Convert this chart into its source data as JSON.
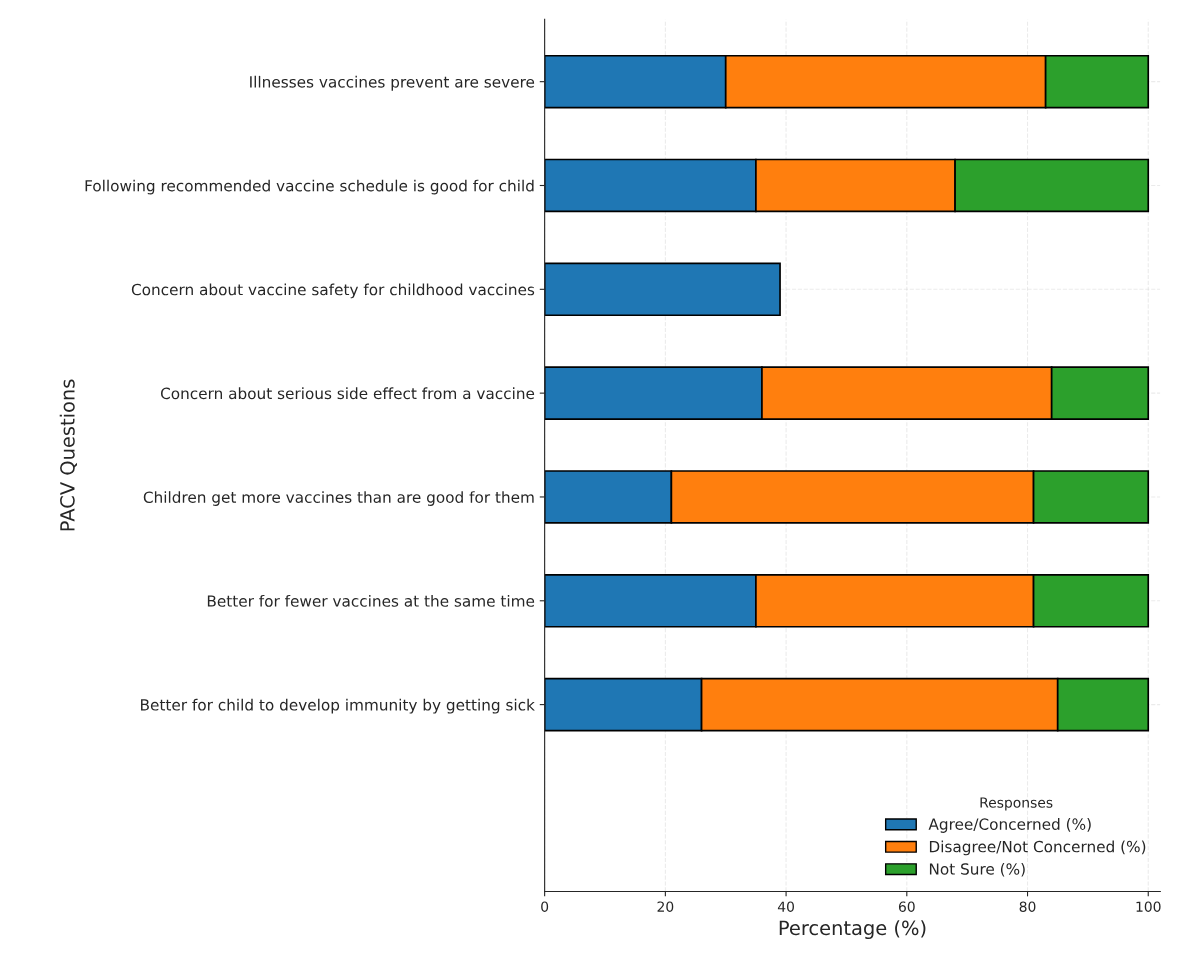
{
  "chart_data": {
    "type": "bar",
    "orientation": "horizontal",
    "stacked": true,
    "xlabel": "Percentage (%)",
    "ylabel": "PACV Questions",
    "legend_title": "Responses",
    "categories": [
      "Illnesses vaccines prevent are severe",
      "Following recommended vaccine schedule is good for child",
      "Concern about vaccine safety for childhood vaccines",
      "Concern about serious side effect from a vaccine",
      "Children get more vaccines than are good for them",
      "Better for fewer vaccines at the same time",
      "Better for child to develop immunity by getting sick"
    ],
    "series": [
      {
        "name": "Agree/Concerned (%)",
        "color": "#1f77b4",
        "values": [
          30,
          35,
          39,
          36,
          21,
          35,
          26
        ]
      },
      {
        "name": "Disagree/Not Concerned (%)",
        "color": "#ff7f0e",
        "values": [
          53,
          33,
          null,
          48,
          60,
          46,
          59
        ]
      },
      {
        "name": "Not Sure (%)",
        "color": "#2ca02c",
        "values": [
          17,
          32,
          null,
          16,
          19,
          19,
          15
        ]
      }
    ],
    "xlim": [
      0,
      102
    ],
    "xticks": [
      0,
      20,
      40,
      60,
      80,
      100
    ],
    "grid": true,
    "legend": "bottom right"
  }
}
